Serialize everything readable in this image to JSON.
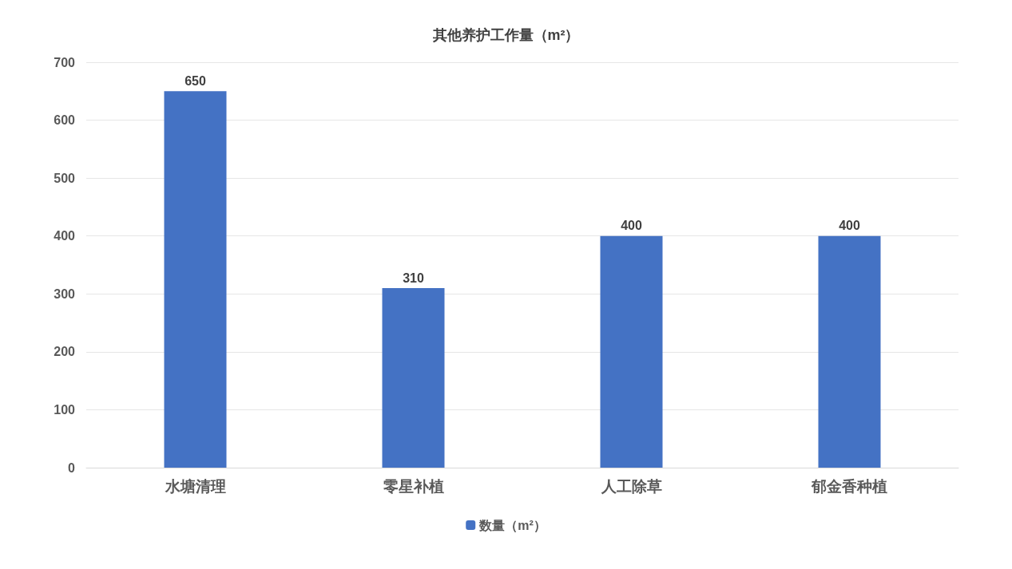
{
  "chart_data": {
    "type": "bar",
    "title": "其他养护工作量（m²）",
    "categories": [
      "水塘清理",
      "零星补植",
      "人工除草",
      "郁金香种植"
    ],
    "series": [
      {
        "name": "数量（m²）",
        "color": "#4472c4",
        "values": [
          650,
          310,
          400,
          400
        ]
      }
    ],
    "ylim": [
      0,
      700
    ],
    "yticks": [
      0,
      100,
      200,
      300,
      400,
      500,
      600,
      700
    ],
    "grid": "y",
    "legend": "bottom",
    "data_labels": true
  }
}
